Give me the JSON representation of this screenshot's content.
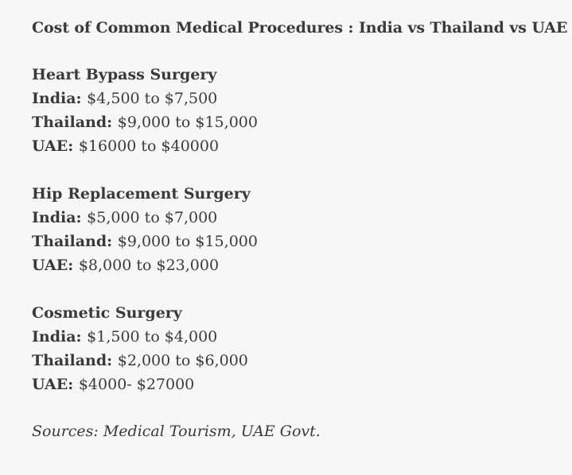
{
  "title": "Cost of Common Medical Procedures : India vs Thailand vs UAE",
  "sections": [
    {
      "heading": "Heart Bypass Surgery",
      "rows": [
        {
          "country": "India:",
          "range": "$4,500 to $7,500"
        },
        {
          "country": "Thailand:",
          "range": "$9,000 to $15,000"
        },
        {
          "country": "UAE:",
          "range": "$16000 to $40000"
        }
      ]
    },
    {
      "heading": "Hip Replacement Surgery",
      "rows": [
        {
          "country": "India:",
          "range": "$5,000 to $7,000"
        },
        {
          "country": "Thailand:",
          "range": "$9,000 to $15,000"
        },
        {
          "country": "UAE:",
          "range": "$8,000 to $23,000"
        }
      ]
    },
    {
      "heading": "Cosmetic Surgery",
      "rows": [
        {
          "country": "India:",
          "range": "$1,500 to $4,000"
        },
        {
          "country": "Thailand:",
          "range": "$2,000 to $6,000"
        },
        {
          "country": "UAE:",
          "range": "$4000- $27000"
        }
      ]
    }
  ],
  "sources": "Sources: Medical Tourism, UAE Govt."
}
